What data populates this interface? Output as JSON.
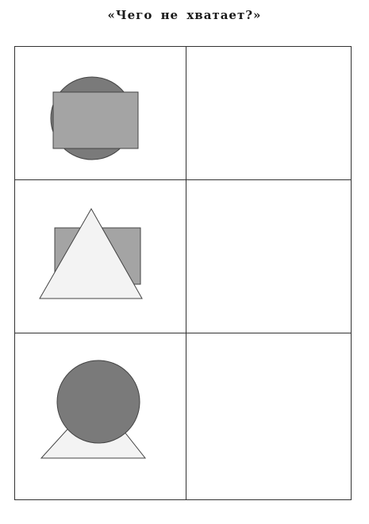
{
  "title": "«Чего не хватает?»",
  "colors": {
    "circle_fill": "#7a7a7a",
    "rect_fill": "#a4a4a4",
    "triangle_fill": "#f3f3f3",
    "outline": "#444444",
    "grid_line": "#333333"
  },
  "rows": [
    {
      "left_figures": [
        "circle",
        "rectangle"
      ],
      "right": "empty"
    },
    {
      "left_figures": [
        "rectangle",
        "triangle"
      ],
      "right": "empty"
    },
    {
      "left_figures": [
        "triangle",
        "circle"
      ],
      "right": "empty"
    }
  ]
}
